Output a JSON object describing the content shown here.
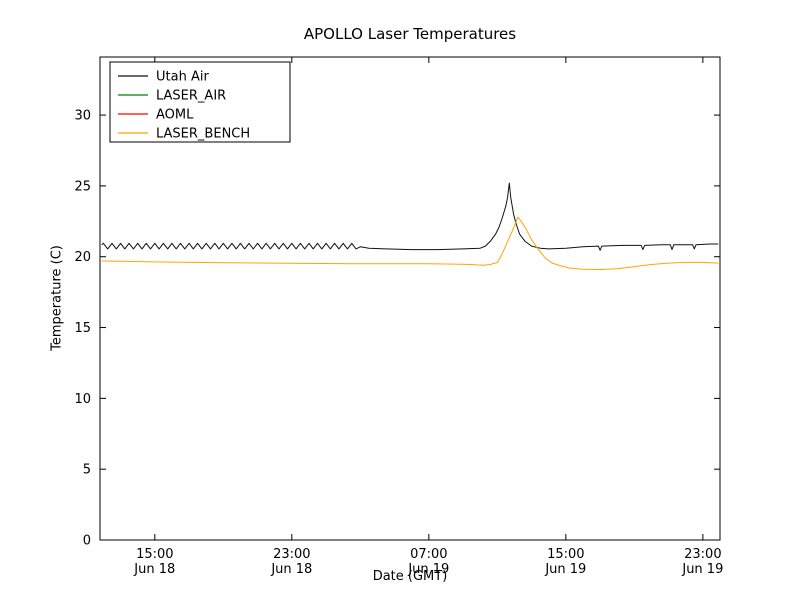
{
  "chart_data": {
    "type": "line",
    "title": "APOLLO Laser Temperatures",
    "xlabel": "Date (GMT)",
    "ylabel": "Temperature (C)",
    "x_axis_unit": "hours since Jun 18 00:00 GMT",
    "xlim": [
      11.8,
      48.0
    ],
    "ylim": [
      0,
      34.1
    ],
    "grid": false,
    "legend_position": "upper left",
    "x_ticks": [
      {
        "t": 15,
        "time": "15:00",
        "date": "Jun 18"
      },
      {
        "t": 23,
        "time": "23:00",
        "date": "Jun 18"
      },
      {
        "t": 31,
        "time": "07:00",
        "date": "Jun 19"
      },
      {
        "t": 39,
        "time": "15:00",
        "date": "Jun 19"
      },
      {
        "t": 47,
        "time": "23:00",
        "date": "Jun 19"
      }
    ],
    "y_ticks": [
      0,
      5,
      10,
      15,
      20,
      25,
      30
    ],
    "series": [
      {
        "name": "Utah Air",
        "color": "#111111",
        "points": [
          [
            11.9,
            20.85
          ],
          [
            12.0,
            20.95
          ],
          [
            12.25,
            20.55
          ],
          [
            12.5,
            20.95
          ],
          [
            12.75,
            20.55
          ],
          [
            13.0,
            20.95
          ],
          [
            13.25,
            20.55
          ],
          [
            13.5,
            20.95
          ],
          [
            13.75,
            20.55
          ],
          [
            14.0,
            20.95
          ],
          [
            14.25,
            20.55
          ],
          [
            14.5,
            20.95
          ],
          [
            14.75,
            20.55
          ],
          [
            15.0,
            20.95
          ],
          [
            15.25,
            20.55
          ],
          [
            15.5,
            20.95
          ],
          [
            15.75,
            20.55
          ],
          [
            16.0,
            20.95
          ],
          [
            16.25,
            20.55
          ],
          [
            16.5,
            20.95
          ],
          [
            16.75,
            20.55
          ],
          [
            17.0,
            20.95
          ],
          [
            17.25,
            20.55
          ],
          [
            17.5,
            20.95
          ],
          [
            17.75,
            20.55
          ],
          [
            18.0,
            20.95
          ],
          [
            18.25,
            20.55
          ],
          [
            18.5,
            20.95
          ],
          [
            18.75,
            20.55
          ],
          [
            19.0,
            20.95
          ],
          [
            19.25,
            20.55
          ],
          [
            19.5,
            20.95
          ],
          [
            19.75,
            20.55
          ],
          [
            20.0,
            20.95
          ],
          [
            20.25,
            20.55
          ],
          [
            20.5,
            20.95
          ],
          [
            20.75,
            20.55
          ],
          [
            21.0,
            20.95
          ],
          [
            21.25,
            20.55
          ],
          [
            21.5,
            20.95
          ],
          [
            21.75,
            20.55
          ],
          [
            22.0,
            20.95
          ],
          [
            22.25,
            20.55
          ],
          [
            22.5,
            20.95
          ],
          [
            22.75,
            20.55
          ],
          [
            23.0,
            20.95
          ],
          [
            23.25,
            20.55
          ],
          [
            23.5,
            20.95
          ],
          [
            23.75,
            20.55
          ],
          [
            24.0,
            20.95
          ],
          [
            24.25,
            20.55
          ],
          [
            24.5,
            20.95
          ],
          [
            24.75,
            20.55
          ],
          [
            25.0,
            20.95
          ],
          [
            25.25,
            20.55
          ],
          [
            25.5,
            20.95
          ],
          [
            25.75,
            20.55
          ],
          [
            26.0,
            20.95
          ],
          [
            26.25,
            20.55
          ],
          [
            26.5,
            20.95
          ],
          [
            26.75,
            20.55
          ],
          [
            27.0,
            20.7
          ],
          [
            27.5,
            20.6
          ],
          [
            28.5,
            20.55
          ],
          [
            30.0,
            20.5
          ],
          [
            31.5,
            20.5
          ],
          [
            33.0,
            20.55
          ],
          [
            34.0,
            20.6
          ],
          [
            34.3,
            20.75
          ],
          [
            34.6,
            21.1
          ],
          [
            34.9,
            21.6
          ],
          [
            35.1,
            22.1
          ],
          [
            35.3,
            22.8
          ],
          [
            35.5,
            23.6
          ],
          [
            35.6,
            24.2
          ],
          [
            35.7,
            25.2
          ],
          [
            35.78,
            24.2
          ],
          [
            35.85,
            23.7
          ],
          [
            35.95,
            23.0
          ],
          [
            36.1,
            22.3
          ],
          [
            36.3,
            21.6
          ],
          [
            36.6,
            21.1
          ],
          [
            37.0,
            20.75
          ],
          [
            37.5,
            20.6
          ],
          [
            38.0,
            20.55
          ],
          [
            39.0,
            20.6
          ],
          [
            40.0,
            20.7
          ],
          [
            40.9,
            20.75
          ],
          [
            41.0,
            20.45
          ],
          [
            41.1,
            20.75
          ],
          [
            42.3,
            20.8
          ],
          [
            43.4,
            20.8
          ],
          [
            43.5,
            20.5
          ],
          [
            43.6,
            20.8
          ],
          [
            44.6,
            20.85
          ],
          [
            45.1,
            20.85
          ],
          [
            45.2,
            20.5
          ],
          [
            45.3,
            20.85
          ],
          [
            46.4,
            20.85
          ],
          [
            46.5,
            20.55
          ],
          [
            46.6,
            20.85
          ],
          [
            47.4,
            20.9
          ],
          [
            47.9,
            20.9
          ]
        ]
      },
      {
        "name": "LASER_AIR",
        "color": "#008000",
        "points": []
      },
      {
        "name": "AOML",
        "color": "#ff0000",
        "points": []
      },
      {
        "name": "LASER_BENCH",
        "color": "#ffa500",
        "points": [
          [
            11.9,
            19.7
          ],
          [
            13.0,
            19.68
          ],
          [
            14.5,
            19.65
          ],
          [
            16.0,
            19.62
          ],
          [
            17.5,
            19.6
          ],
          [
            19.0,
            19.58
          ],
          [
            20.5,
            19.56
          ],
          [
            22.0,
            19.55
          ],
          [
            23.5,
            19.53
          ],
          [
            25.0,
            19.52
          ],
          [
            26.5,
            19.5
          ],
          [
            28.0,
            19.5
          ],
          [
            29.5,
            19.5
          ],
          [
            31.0,
            19.5
          ],
          [
            32.5,
            19.48
          ],
          [
            33.5,
            19.45
          ],
          [
            33.8,
            19.42
          ],
          [
            34.2,
            19.4
          ],
          [
            34.6,
            19.45
          ],
          [
            35.0,
            19.6
          ],
          [
            35.2,
            20.0
          ],
          [
            35.5,
            20.8
          ],
          [
            35.8,
            21.6
          ],
          [
            36.0,
            22.2
          ],
          [
            36.2,
            22.8
          ],
          [
            36.4,
            22.5
          ],
          [
            36.7,
            21.9
          ],
          [
            37.0,
            21.2
          ],
          [
            37.4,
            20.5
          ],
          [
            37.8,
            19.9
          ],
          [
            38.2,
            19.55
          ],
          [
            38.7,
            19.35
          ],
          [
            39.2,
            19.2
          ],
          [
            40.0,
            19.12
          ],
          [
            41.0,
            19.1
          ],
          [
            42.0,
            19.15
          ],
          [
            43.0,
            19.3
          ],
          [
            44.0,
            19.45
          ],
          [
            45.0,
            19.55
          ],
          [
            46.0,
            19.6
          ],
          [
            47.0,
            19.6
          ],
          [
            47.9,
            19.55
          ]
        ]
      }
    ]
  }
}
